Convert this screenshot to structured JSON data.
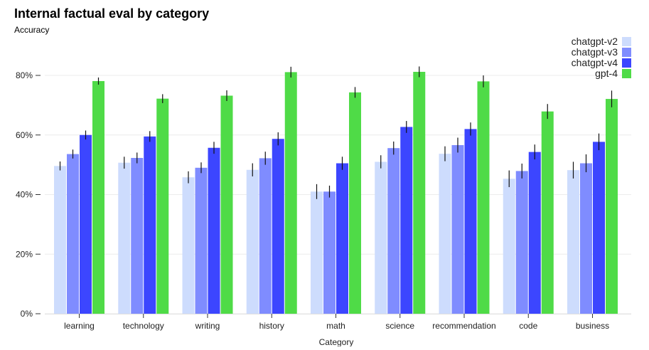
{
  "chart_data": {
    "type": "bar",
    "title": "Internal factual eval by category",
    "ylabel": "Accuracy",
    "xlabel": "Category",
    "ylim": [
      0,
      0.8
    ],
    "yticks": [
      "0%",
      "20%",
      "40%",
      "60%",
      "80%"
    ],
    "ytick_values": [
      0,
      0.2,
      0.4,
      0.6,
      0.8
    ],
    "grid": true,
    "legend_position": "top-right",
    "categories": [
      "learning",
      "technology",
      "writing",
      "history",
      "math",
      "science",
      "recommendation",
      "code",
      "business"
    ],
    "series": [
      {
        "name": "chatgpt-v2",
        "color": "#cddcfd",
        "values": [
          0.496,
          0.507,
          0.458,
          0.483,
          0.41,
          0.51,
          0.537,
          0.453,
          0.482
        ],
        "errors": [
          0.015,
          0.02,
          0.02,
          0.022,
          0.025,
          0.022,
          0.025,
          0.028,
          0.028
        ]
      },
      {
        "name": "chatgpt-v3",
        "color": "#7f8cff",
        "values": [
          0.536,
          0.523,
          0.49,
          0.522,
          0.41,
          0.556,
          0.566,
          0.479,
          0.505
        ],
        "errors": [
          0.015,
          0.018,
          0.018,
          0.022,
          0.02,
          0.022,
          0.025,
          0.025,
          0.03
        ]
      },
      {
        "name": "chatgpt-v4",
        "color": "#3c46ff",
        "values": [
          0.6,
          0.595,
          0.557,
          0.587,
          0.505,
          0.627,
          0.62,
          0.543,
          0.577
        ],
        "errors": [
          0.015,
          0.018,
          0.02,
          0.022,
          0.022,
          0.02,
          0.022,
          0.025,
          0.028
        ]
      },
      {
        "name": "gpt-4",
        "color": "#4fdb47",
        "values": [
          0.781,
          0.722,
          0.732,
          0.811,
          0.743,
          0.812,
          0.78,
          0.679,
          0.721
        ],
        "errors": [
          0.012,
          0.015,
          0.018,
          0.018,
          0.018,
          0.018,
          0.02,
          0.025,
          0.028
        ]
      }
    ]
  }
}
